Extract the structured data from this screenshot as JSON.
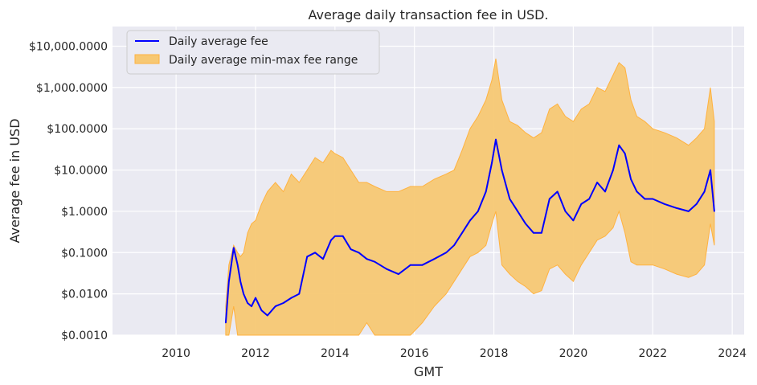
{
  "chart_data": {
    "type": "line",
    "title": "Average daily transaction fee in USD.",
    "xlabel": "GMT",
    "ylabel": "Average fee in USD",
    "x_type": "year",
    "xlim": [
      2008.4,
      2024.3
    ],
    "ylim": [
      0.001,
      30000
    ],
    "yscale": "log",
    "grid": true,
    "legend_position": "top-left",
    "x_ticks": [
      2010,
      2012,
      2014,
      2016,
      2018,
      2020,
      2022,
      2024
    ],
    "x_tick_labels": [
      "2010",
      "2012",
      "2014",
      "2016",
      "2018",
      "2020",
      "2022",
      "2024"
    ],
    "y_ticks": [
      0.001,
      0.01,
      0.1,
      1,
      10,
      100,
      1000,
      10000
    ],
    "y_tick_labels": [
      "$0.0010",
      "$0.0100",
      "$0.1000",
      "$1.0000",
      "$10.0000",
      "$100.0000",
      "$1,000.0000",
      "$10,000.0000"
    ],
    "colors": {
      "background": "#eaeaf2",
      "grid": "#ffffff",
      "line": "#0000ff",
      "band": "#f7c873",
      "band_edge": "#ffb23f"
    },
    "series": [
      {
        "name": "Daily average fee",
        "kind": "line",
        "x": [
          2011.25,
          2011.33,
          2011.45,
          2011.55,
          2011.62,
          2011.7,
          2011.8,
          2011.9,
          2012.0,
          2012.15,
          2012.3,
          2012.5,
          2012.7,
          2012.9,
          2013.1,
          2013.3,
          2013.5,
          2013.7,
          2013.9,
          2014.0,
          2014.2,
          2014.4,
          2014.6,
          2014.8,
          2015.0,
          2015.3,
          2015.6,
          2015.9,
          2016.2,
          2016.5,
          2016.8,
          2017.0,
          2017.2,
          2017.4,
          2017.6,
          2017.8,
          2017.95,
          2018.05,
          2018.2,
          2018.4,
          2018.6,
          2018.8,
          2019.0,
          2019.2,
          2019.4,
          2019.6,
          2019.8,
          2020.0,
          2020.2,
          2020.4,
          2020.6,
          2020.8,
          2021.0,
          2021.15,
          2021.3,
          2021.45,
          2021.6,
          2021.8,
          2022.0,
          2022.3,
          2022.6,
          2022.9,
          2023.1,
          2023.3,
          2023.45,
          2023.55
        ],
        "values": [
          0.002,
          0.02,
          0.13,
          0.05,
          0.02,
          0.01,
          0.006,
          0.005,
          0.008,
          0.004,
          0.003,
          0.005,
          0.006,
          0.008,
          0.01,
          0.08,
          0.1,
          0.07,
          0.2,
          0.25,
          0.25,
          0.12,
          0.1,
          0.07,
          0.06,
          0.04,
          0.03,
          0.05,
          0.05,
          0.07,
          0.1,
          0.15,
          0.3,
          0.6,
          1.0,
          3.0,
          15,
          55,
          10,
          2.0,
          1.0,
          0.5,
          0.3,
          0.3,
          2.0,
          3.0,
          1.0,
          0.6,
          1.5,
          2.0,
          5.0,
          3.0,
          10,
          40,
          25,
          6.0,
          3.0,
          2.0,
          2.0,
          1.5,
          1.2,
          1.0,
          1.5,
          3.0,
          10,
          1.0
        ]
      },
      {
        "name": "Daily average min-max fee range",
        "kind": "band",
        "x": [
          2011.25,
          2011.33,
          2011.45,
          2011.55,
          2011.62,
          2011.7,
          2011.8,
          2011.9,
          2012.0,
          2012.15,
          2012.3,
          2012.5,
          2012.7,
          2012.9,
          2013.1,
          2013.3,
          2013.5,
          2013.7,
          2013.9,
          2014.0,
          2014.2,
          2014.4,
          2014.6,
          2014.8,
          2015.0,
          2015.3,
          2015.6,
          2015.9,
          2016.2,
          2016.5,
          2016.8,
          2017.0,
          2017.2,
          2017.4,
          2017.6,
          2017.8,
          2017.95,
          2018.05,
          2018.2,
          2018.4,
          2018.6,
          2018.8,
          2019.0,
          2019.2,
          2019.4,
          2019.6,
          2019.8,
          2020.0,
          2020.2,
          2020.4,
          2020.6,
          2020.8,
          2021.0,
          2021.15,
          2021.3,
          2021.45,
          2021.6,
          2021.8,
          2022.0,
          2022.3,
          2022.6,
          2022.9,
          2023.1,
          2023.3,
          2023.45,
          2023.55
        ],
        "upper": [
          0.005,
          0.05,
          0.15,
          0.1,
          0.08,
          0.1,
          0.3,
          0.5,
          0.6,
          1.5,
          3.0,
          5.0,
          3.0,
          8.0,
          5.0,
          10,
          20,
          15,
          30,
          25,
          20,
          10,
          5.0,
          5.0,
          4.0,
          3.0,
          3.0,
          4.0,
          4.0,
          6.0,
          8.0,
          10,
          30,
          100,
          200,
          500,
          1500,
          5000,
          500,
          150,
          120,
          80,
          60,
          80,
          300,
          400,
          200,
          150,
          300,
          400,
          1000,
          800,
          2000,
          4000,
          3000,
          500,
          200,
          150,
          100,
          80,
          60,
          40,
          60,
          100,
          1000,
          150
        ],
        "lower": [
          0.001,
          0.001,
          0.005,
          0.001,
          0.001,
          0.001,
          0.001,
          0.001,
          0.001,
          0.001,
          0.001,
          0.001,
          0.001,
          0.001,
          0.001,
          0.001,
          0.001,
          0.001,
          0.001,
          0.001,
          0.001,
          0.001,
          0.001,
          0.002,
          0.001,
          0.001,
          0.001,
          0.001,
          0.002,
          0.005,
          0.01,
          0.02,
          0.04,
          0.08,
          0.1,
          0.15,
          0.5,
          1.0,
          0.05,
          0.03,
          0.02,
          0.015,
          0.01,
          0.012,
          0.04,
          0.05,
          0.03,
          0.02,
          0.05,
          0.1,
          0.2,
          0.25,
          0.4,
          1.0,
          0.3,
          0.06,
          0.05,
          0.05,
          0.05,
          0.04,
          0.03,
          0.025,
          0.03,
          0.05,
          0.5,
          0.15
        ]
      }
    ]
  }
}
